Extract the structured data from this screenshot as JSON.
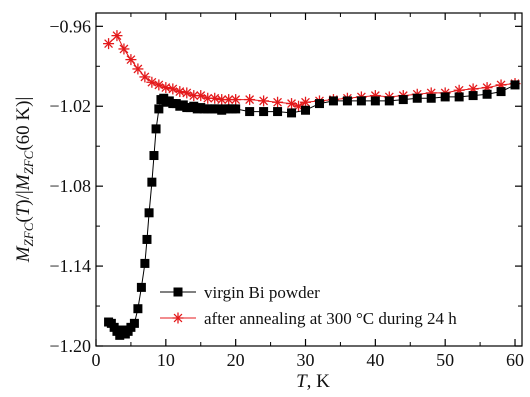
{
  "chart_data": {
    "type": "scatter",
    "title": "",
    "xlabel": {
      "italic": "T",
      "rest": ", K"
    },
    "ylabel": {
      "parts": [
        {
          "t": "M",
          "s": "italic"
        },
        {
          "t": "ZFC",
          "s": "sub"
        },
        {
          "t": "(",
          "s": "normal"
        },
        {
          "t": "T",
          "s": "italic"
        },
        {
          "t": ")/|",
          "s": "normal"
        },
        {
          "t": "M",
          "s": "italic"
        },
        {
          "t": "ZFC",
          "s": "sub"
        },
        {
          "t": "(60 K)|",
          "s": "normal"
        }
      ]
    },
    "xlim": [
      0,
      61
    ],
    "ylim": [
      -1.2,
      -0.95
    ],
    "xticks": [
      0,
      10,
      20,
      30,
      40,
      50,
      60
    ],
    "xtick_labels": [
      "0",
      "10",
      "20",
      "30",
      "40",
      "50",
      "60"
    ],
    "yticks": [
      -0.96,
      -1.02,
      -1.08,
      -1.14,
      -1.2
    ],
    "ytick_labels": [
      "−0.96",
      "−1.02",
      "−1.08",
      "−1.14",
      "−1.20"
    ],
    "grid": false,
    "legend_position": "bottom-left",
    "series": [
      {
        "name": "virgin Bi powder",
        "marker": "square",
        "color": "#000000",
        "x": [
          1.8,
          2.2,
          2.6,
          3.0,
          3.4,
          3.8,
          4.2,
          4.6,
          5.0,
          5.5,
          6.0,
          6.5,
          7.0,
          7.3,
          7.6,
          8.0,
          8.3,
          8.6,
          9.0,
          9.3,
          9.7,
          10.0,
          10.5,
          11.0,
          11.5,
          12.0,
          12.5,
          13.0,
          13.5,
          14.0,
          14.5,
          15.0,
          15.5,
          16.0,
          16.5,
          17.0,
          17.5,
          18.0,
          18.5,
          19.0,
          19.5,
          20.0,
          22.0,
          24.0,
          26.0,
          28.0,
          30.0,
          32.0,
          34.0,
          36.0,
          38.0,
          40.0,
          42.0,
          44.0,
          46.0,
          48.0,
          50.0,
          52.0,
          54.0,
          56.0,
          58.0,
          60.0
        ],
        "y": [
          -1.182,
          -1.183,
          -1.186,
          -1.189,
          -1.192,
          -1.188,
          -1.191,
          -1.189,
          -1.186,
          -1.183,
          -1.172,
          -1.156,
          -1.138,
          -1.12,
          -1.1,
          -1.077,
          -1.057,
          -1.037,
          -1.022,
          -1.015,
          -1.014,
          -1.017,
          -1.016,
          -1.018,
          -1.018,
          -1.02,
          -1.019,
          -1.021,
          -1.021,
          -1.02,
          -1.022,
          -1.021,
          -1.022,
          -1.022,
          -1.022,
          -1.022,
          -1.022,
          -1.023,
          -1.022,
          -1.022,
          -1.022,
          -1.022,
          -1.024,
          -1.024,
          -1.024,
          -1.025,
          -1.023,
          -1.018,
          -1.016,
          -1.016,
          -1.016,
          -1.016,
          -1.016,
          -1.015,
          -1.014,
          -1.014,
          -1.013,
          -1.013,
          -1.012,
          -1.011,
          -1.009,
          -1.004
        ]
      },
      {
        "name": "after annealing at 300 °C during 24 h",
        "marker": "asterisk",
        "color": "#e41a1c",
        "x": [
          1.8,
          3.0,
          4.0,
          5.0,
          6.0,
          7.0,
          8.0,
          9.0,
          10.0,
          11.0,
          12.0,
          13.0,
          14.0,
          15.0,
          16.0,
          17.0,
          18.0,
          19.0,
          20.0,
          22.0,
          24.0,
          26.0,
          28.0,
          29.0,
          30.0,
          32.0,
          34.0,
          36.0,
          38.0,
          40.0,
          42.0,
          44.0,
          46.0,
          48.0,
          50.0,
          52.0,
          54.0,
          56.0,
          58.0,
          60.0
        ],
        "y": [
          -0.973,
          -0.967,
          -0.977,
          -0.985,
          -0.992,
          -0.998,
          -1.002,
          -1.004,
          -1.006,
          -1.007,
          -1.009,
          -1.01,
          -1.012,
          -1.012,
          -1.014,
          -1.014,
          -1.015,
          -1.015,
          -1.015,
          -1.015,
          -1.016,
          -1.017,
          -1.018,
          -1.02,
          -1.017,
          -1.016,
          -1.015,
          -1.014,
          -1.013,
          -1.012,
          -1.013,
          -1.012,
          -1.011,
          -1.01,
          -1.01,
          -1.008,
          -1.007,
          -1.006,
          -1.004,
          -1.003
        ]
      }
    ]
  }
}
